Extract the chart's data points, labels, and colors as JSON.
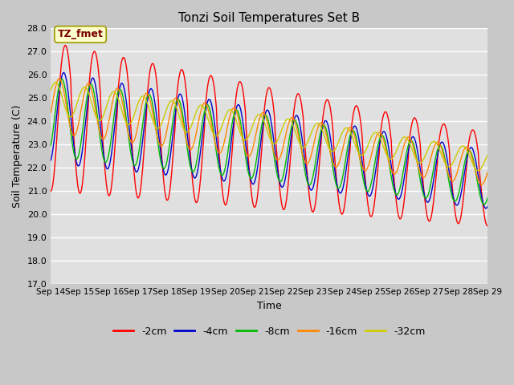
{
  "title": "Tonzi Soil Temperatures Set B",
  "xlabel": "Time",
  "ylabel": "Soil Temperature (C)",
  "annotation": "TZ_fmet",
  "ylim": [
    17.0,
    28.0
  ],
  "yticks": [
    17.0,
    18.0,
    19.0,
    20.0,
    21.0,
    22.0,
    23.0,
    24.0,
    25.0,
    26.0,
    27.0,
    28.0
  ],
  "xtick_labels": [
    "Sep 14",
    "Sep 15",
    "Sep 16",
    "Sep 17",
    "Sep 18",
    "Sep 19",
    "Sep 20",
    "Sep 21",
    "Sep 22",
    "Sep 23",
    "Sep 24",
    "Sep 25",
    "Sep 26",
    "Sep 27",
    "Sep 28",
    "Sep 29"
  ],
  "series": [
    "-2cm",
    "-4cm",
    "-8cm",
    "-16cm",
    "-32cm"
  ],
  "colors": [
    "#ff0000",
    "#0000cc",
    "#00bb00",
    "#ff8800",
    "#cccc00"
  ],
  "plot_bg": "#e0e0e0",
  "grid_color": "#ffffff",
  "title_fontsize": 11,
  "label_fontsize": 9,
  "tick_fontsize": 8
}
